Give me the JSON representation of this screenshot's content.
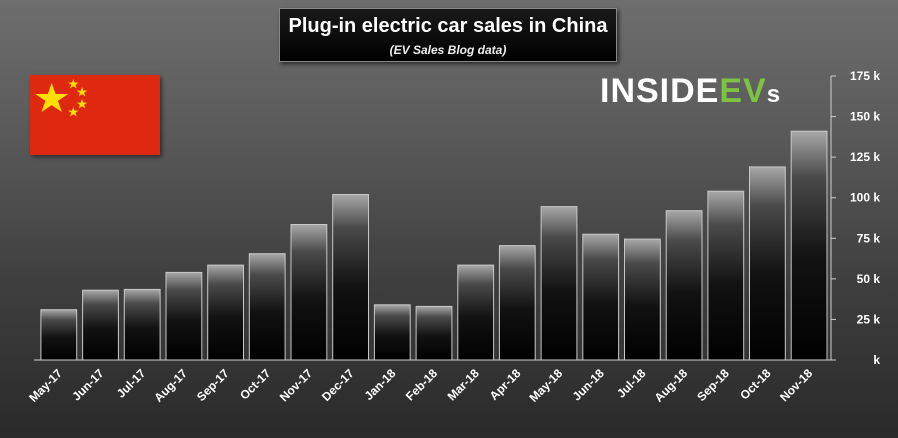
{
  "header": {
    "title": "Plug-in electric car sales in China",
    "subtitle": "(EV Sales Blog data)"
  },
  "logo": {
    "part1": "INSIDE",
    "part2": "EV",
    "part3": "s"
  },
  "colors": {
    "logo_green": "#7dc242",
    "flag_red": "#de2910",
    "flag_yellow": "#ffde00"
  },
  "chart_data": {
    "type": "bar",
    "categories": [
      "May-17",
      "Jun-17",
      "Jul-17",
      "Aug-17",
      "Sep-17",
      "Oct-17",
      "Nov-17",
      "Dec-17",
      "Jan-18",
      "Feb-18",
      "Mar-18",
      "Apr-18",
      "May-18",
      "Jun-18",
      "Jul-18",
      "Aug-18",
      "Sep-18",
      "Oct-18",
      "Nov-18"
    ],
    "values": [
      31,
      43,
      43.5,
      54,
      58.5,
      65.5,
      83.5,
      102,
      34,
      33,
      58.5,
      70.5,
      94.5,
      77.5,
      74.5,
      92,
      104,
      119,
      141
    ],
    "ylim": [
      0,
      175
    ],
    "yticks": [
      0,
      25,
      50,
      75,
      100,
      125,
      150,
      175
    ],
    "ytick_labels": [
      "k",
      "25 k",
      "50 k",
      "75 k",
      "100 k",
      "125 k",
      "150 k",
      "175 k"
    ],
    "xlabel": "",
    "ylabel": "",
    "y_axis_position": "right"
  }
}
